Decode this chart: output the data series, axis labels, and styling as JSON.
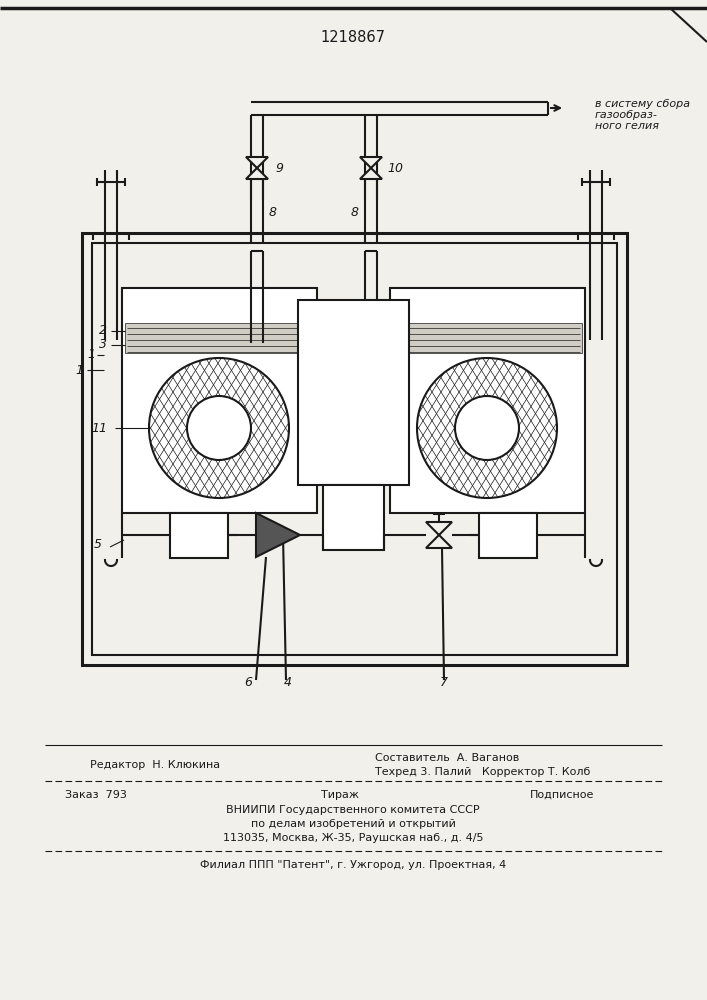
{
  "patent_number": "1218867",
  "bg_color": "#f2f0eb",
  "line_color": "#1a1a1a",
  "gas_label": [
    "в систему сбора",
    "газообраз-",
    "ного гелия"
  ],
  "footer": {
    "editor": "Редактор  Н. Клюкина",
    "compiler_top": "Составитель  А. Ваганов",
    "compiler_bot": "Техред 3. Палий   Корректор Т. Колб",
    "order": "Заказ  793",
    "tiraj": "Тираж",
    "podpis": "Подписное",
    "org1": "ВНИИПИ Государственного комитета СССР",
    "org2": "по делам изобретений и открытий",
    "org3": "113035, Москва, Ж-35, Раушская наб., д. 4/5",
    "branch": "Филиал ППП \"Патент\", г. Ужгород, ул. Проектная, 4"
  }
}
